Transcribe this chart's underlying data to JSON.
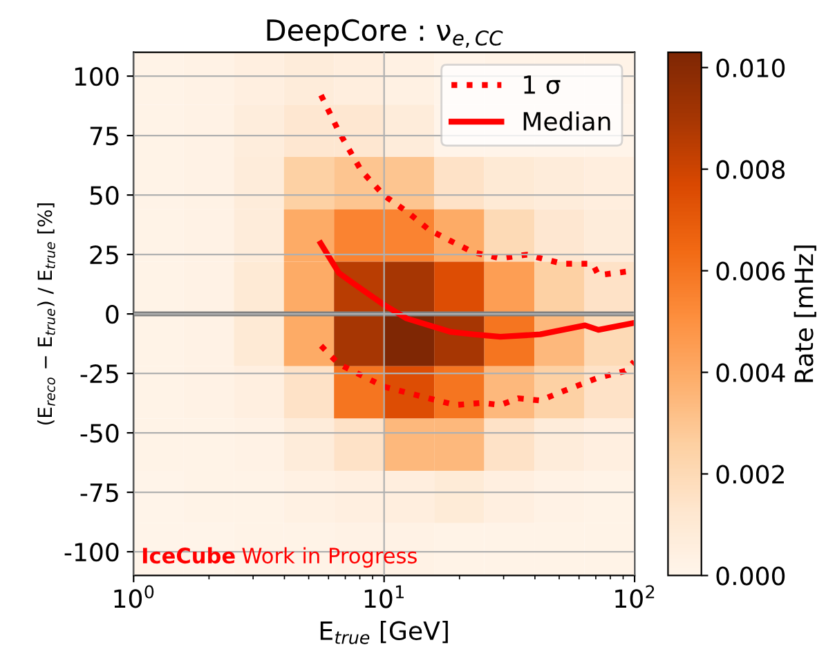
{
  "chart_data": {
    "type": "heatmap",
    "title": "DeepCore : ν$_{e,CC}$",
    "xlabel": "E$_{true}$ [GeV]",
    "ylabel": "(E$_{reco}$ − E$_{true}$) / E$_{true}$ [%]",
    "clabel": "Rate [mHz]",
    "cells": [
      [
        0.0002,
        0.0003,
        0.0005,
        0.0008,
        0.0006,
        0.0004,
        0.0001,
        0.0002,
        0.0002,
        0.0002
      ],
      [
        0.0002,
        0.0003,
        0.0007,
        0.0012,
        0.0012,
        0.0008,
        0.0001,
        0.0001,
        0.0001,
        0.0001
      ],
      [
        0.0002,
        0.0003,
        0.0008,
        0.0025,
        0.003,
        0.003,
        0.0015,
        0.001,
        0.0008,
        0.0006
      ],
      [
        0.0002,
        0.0003,
        0.0008,
        0.004,
        0.0055,
        0.0055,
        0.004,
        0.002,
        0.0012,
        0.0008
      ],
      [
        0.0002,
        0.0003,
        0.001,
        0.004,
        0.0085,
        0.009,
        0.0075,
        0.0045,
        0.0025,
        0.0015
      ],
      [
        0.0002,
        0.0003,
        0.001,
        0.004,
        0.009,
        0.0103,
        0.009,
        0.006,
        0.0035,
        0.002
      ],
      [
        0.0002,
        0.0003,
        0.0005,
        0.0015,
        0.006,
        0.0075,
        0.006,
        0.0035,
        0.0025,
        0.0015
      ],
      [
        0.0002,
        0.0002,
        0.0003,
        0.0008,
        0.0015,
        0.0035,
        0.0035,
        0.0015,
        0.0008,
        0.0005
      ],
      [
        0.0001,
        0.0002,
        0.0002,
        0.0004,
        0.0005,
        0.0006,
        0.0009,
        0.0005,
        0.0003,
        0.0002
      ],
      [
        0.0001,
        0.0001,
        0.0002,
        0.0002,
        0.0003,
        0.0003,
        0.0002,
        0.0002,
        0.0002,
        0.0002
      ]
    ],
    "clim": [
      0,
      0.0103
    ],
    "cticks": [
      {
        "value": 0,
        "label": "0.000"
      },
      {
        "value": 0.002,
        "label": "0.002"
      },
      {
        "value": 0.004,
        "label": "0.004"
      },
      {
        "value": 0.006,
        "label": "0.006"
      },
      {
        "value": 0.008,
        "label": "0.008"
      },
      {
        "value": 0.01,
        "label": "0.010"
      }
    ],
    "log": "x",
    "xlim": [
      1,
      100
    ],
    "xticks": [
      {
        "value": 1,
        "label": "10$^{0}$"
      },
      {
        "value": 10,
        "label": "10$^{1}$"
      },
      {
        "value": 100,
        "label": "10$^{2}$"
      }
    ],
    "ylim": [
      -110,
      110
    ],
    "yticks": [
      -100,
      -75,
      -50,
      -25,
      0,
      25,
      50,
      75,
      100
    ],
    "grid": true,
    "series": [
      {
        "name": "1 σ",
        "type": "line",
        "color": "#ff0000",
        "line_style": "dotted",
        "x": [
          5.6,
          6.6,
          8.1,
          10,
          12.3,
          15.1,
          18.5,
          22.7,
          29.1,
          37.2,
          51.6,
          68,
          71.7,
          99.5
        ],
        "values": [
          92,
          76.6,
          60.3,
          49.8,
          43.1,
          35.4,
          30.6,
          25.9,
          23.4,
          24.9,
          21.1,
          21.1,
          16.3,
          18.2
        ]
      },
      {
        "name": "Median",
        "type": "line",
        "color": "#ff0000",
        "line_style": "solid",
        "x": [
          5.58,
          6.6,
          8.1,
          10,
          12.3,
          15.1,
          18.5,
          22.7,
          29.1,
          42,
          63.4,
          71.7,
          99.5
        ],
        "values": [
          29.7,
          17.2,
          10.5,
          3.8,
          -1.9,
          -4.8,
          -7.6,
          -8.6,
          -9.6,
          -8.6,
          -4.8,
          -6.7,
          -3.8
        ]
      },
      {
        "type": "line",
        "color": "#ff0000",
        "line_style": "dotted",
        "x": [
          5.6,
          6.6,
          10,
          15.1,
          19.3,
          24.7,
          29.1,
          34.3,
          42,
          51.6,
          71.7,
          91.8,
          99.5
        ],
        "values": [
          -13.4,
          -21.1,
          -30.6,
          -35.5,
          -38.3,
          -37.4,
          -38.3,
          -35.5,
          -36.4,
          -32.6,
          -26.8,
          -24,
          -20.1
        ]
      }
    ],
    "ref_lines": [
      {
        "axis": "y",
        "value": 0,
        "color": "#808080"
      }
    ],
    "legend": "top right",
    "annotations": [
      "IceCube",
      "Work in Progress"
    ]
  }
}
